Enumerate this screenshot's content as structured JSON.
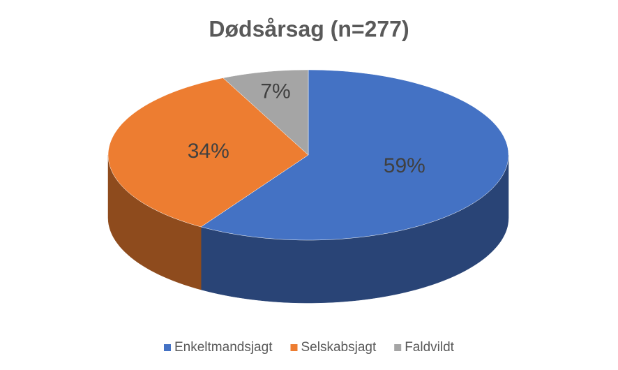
{
  "chart_data": {
    "type": "pie",
    "title": "Dødsårsag (n=277)",
    "categories": [
      "Enkeltmandsjagt",
      "Selskabsjagt",
      "Faldvildt"
    ],
    "values": [
      59,
      34,
      7
    ],
    "value_labels": [
      "59%",
      "34%",
      "7%"
    ],
    "colors": [
      "#4472c4",
      "#ed7d31",
      "#a5a5a5"
    ],
    "legend": "bottom"
  }
}
